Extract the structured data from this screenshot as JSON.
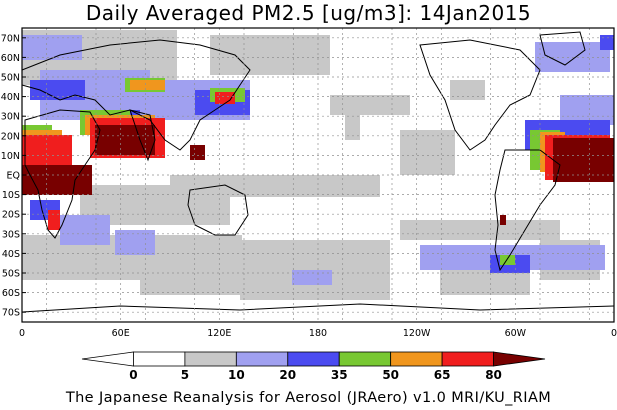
{
  "title": "Daily Averaged PM2.5 [ug/m3]: 14Jan2015",
  "footer": "The Japanese Reanalysis for Aerosol (JRAero) v1.0 MRI/KU_RIAM",
  "lat_labels": [
    "70N",
    "60N",
    "50N",
    "40N",
    "30N",
    "20N",
    "10N",
    "EQ",
    "10S",
    "20S",
    "30S",
    "40S",
    "50S",
    "60S",
    "70S"
  ],
  "lon_labels": [
    "0",
    "60E",
    "120E",
    "180",
    "120W",
    "60W",
    "0"
  ],
  "colorbar": {
    "tick_labels": [
      "0",
      "5",
      "10",
      "20",
      "35",
      "50",
      "65",
      "80"
    ],
    "colors": [
      "#ffffff",
      "#ffffff",
      "#c8c8c8",
      "#a0a0f0",
      "#4b4bf0",
      "#78c832",
      "#f0961e",
      "#f01e1e",
      "#780000"
    ]
  },
  "palette": {
    "low": "#c8c8c8",
    "light_blue": "#a0a0f0",
    "blue": "#4b4bf0",
    "green": "#78c832",
    "orange": "#f0961e",
    "red": "#f01e1e",
    "dark_red": "#780000"
  }
}
